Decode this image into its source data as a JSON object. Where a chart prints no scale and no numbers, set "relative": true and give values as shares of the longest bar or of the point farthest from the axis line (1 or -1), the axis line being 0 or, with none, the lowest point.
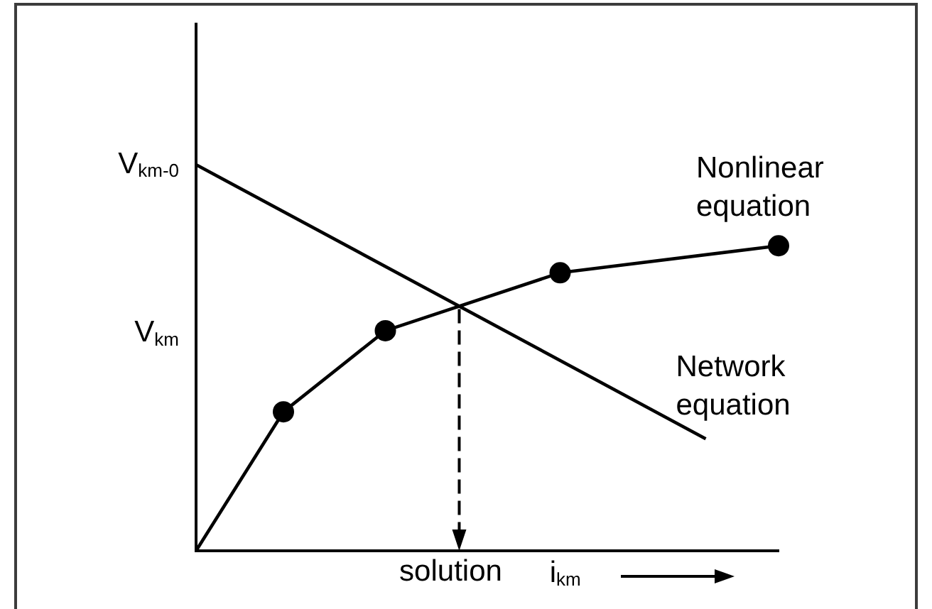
{
  "chart_data": {
    "type": "line",
    "relative": true,
    "xlabel": "i$_{km}$",
    "categories": [
      null,
      null,
      null,
      null,
      null,
      null,
      null,
      null,
      null,
      null,
      null,
      null,
      null,
      null,
      null,
      null,
      null,
      null,
      null,
      null,
      null,
      null,
      null,
      null,
      null,
      null,
      null,
      null,
      null,
      null,
      null,
      null,
      null,
      null,
      null,
      null,
      null,
      null,
      null,
      null,
      null
    ],
    "series": [
      {
        "name": "Network equation",
        "color": "#000000",
        "values": [
          1,
          null,
          null,
          null,
          null,
          null,
          null,
          null,
          null,
          null,
          null,
          null,
          null,
          null,
          null,
          null,
          null,
          null,
          null,
          null,
          null,
          null,
          null,
          null,
          null,
          null,
          null,
          null,
          null,
          null,
          null,
          null,
          null,
          null,
          null,
          0.29,
          null,
          null,
          null,
          null,
          null
        ]
      },
      {
        "name": "Nonlinear equation",
        "color": "#000000",
        "marker": "circle",
        "values": [
          0,
          null,
          null,
          null,
          null,
          null,
          0.36,
          null,
          null,
          null,
          null,
          null,
          null,
          0.57,
          null,
          null,
          null,
          null,
          null,
          null,
          null,
          null,
          null,
          null,
          null,
          0.72,
          null,
          null,
          null,
          null,
          null,
          null,
          null,
          null,
          null,
          null,
          null,
          null,
          null,
          null,
          0.79
        ]
      }
    ],
    "annotations": [
      "V$_{km-0}$",
      "V$_{km}$",
      "solution"
    ]
  }
}
